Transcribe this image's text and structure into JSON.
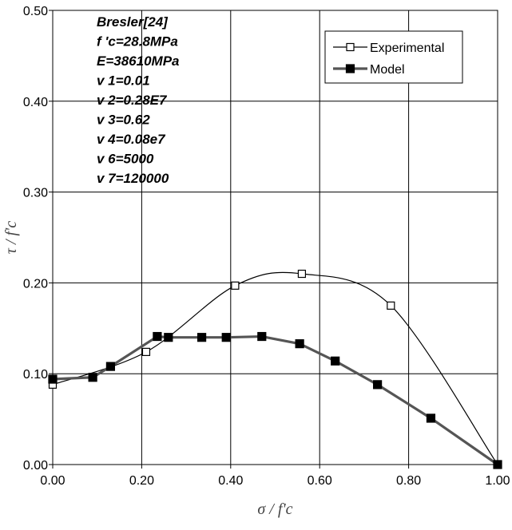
{
  "chart_data": {
    "type": "line",
    "title": "",
    "xlabel": "σ / f'c",
    "ylabel": "τ / f'c",
    "xlim": [
      0,
      1
    ],
    "ylim": [
      0,
      0.5
    ],
    "x_ticks": [
      "0.00",
      "0.20",
      "0.40",
      "0.60",
      "0.80",
      "1.00"
    ],
    "y_ticks": [
      "0.00",
      "0.10",
      "0.20",
      "0.30",
      "0.40",
      "0.50"
    ],
    "grid": "horizontal and vertical major gridlines",
    "legend_position": "top-right",
    "annotations": [
      "Bresler[24]",
      "f 'c=28.8MPa",
      "E=38610MPa",
      "v 1=0.01",
      "v 2=0.28E7",
      "v 3=0.62",
      "v 4=0.08e7",
      "v 6=5000",
      "v 7=120000"
    ],
    "series": [
      {
        "name": "Experimental",
        "marker": "open-square",
        "color": "#000000",
        "points": [
          [
            0.0,
            0.088
          ],
          [
            0.21,
            0.124
          ],
          [
            0.41,
            0.197
          ],
          [
            0.56,
            0.21
          ],
          [
            0.76,
            0.175
          ],
          [
            1.0,
            0.0
          ]
        ]
      },
      {
        "name": "Model",
        "marker": "filled-square",
        "color": "#555555",
        "points": [
          [
            0.0,
            0.094
          ],
          [
            0.09,
            0.096
          ],
          [
            0.13,
            0.108
          ],
          [
            0.235,
            0.141
          ],
          [
            0.26,
            0.14
          ],
          [
            0.335,
            0.14
          ],
          [
            0.39,
            0.14
          ],
          [
            0.47,
            0.141
          ],
          [
            0.555,
            0.133
          ],
          [
            0.635,
            0.114
          ],
          [
            0.73,
            0.088
          ],
          [
            0.85,
            0.051
          ],
          [
            1.0,
            0.0
          ]
        ]
      }
    ]
  }
}
